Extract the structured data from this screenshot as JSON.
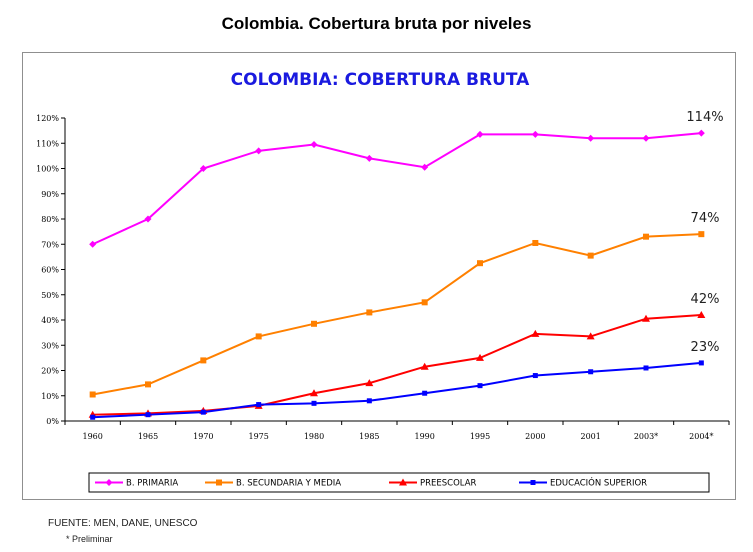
{
  "page": {
    "title": "Colombia.  Cobertura bruta por niveles",
    "source": "FUENTE: MEN, DANE, UNESCO",
    "footnote": "* Preliminar"
  },
  "chart_data": {
    "type": "line",
    "title": "COLOMBIA: COBERTURA BRUTA",
    "categories": [
      "1960",
      "1965",
      "1970",
      "1975",
      "1980",
      "1985",
      "1990",
      "1995",
      "2000",
      "2001",
      "2003*",
      "2004*"
    ],
    "ylim": [
      0,
      120
    ],
    "yticks": [
      "0%",
      "10%",
      "20%",
      "30%",
      "40%",
      "50%",
      "60%",
      "70%",
      "80%",
      "90%",
      "100%",
      "110%",
      "120%"
    ],
    "grid": false,
    "legend_position": "bottom",
    "series": [
      {
        "name": "B. PRIMARIA",
        "color": "#ff00ff",
        "marker": "diamond",
        "values": [
          70,
          80,
          100,
          107,
          109.5,
          104,
          100.5,
          113.5,
          113.5,
          112,
          112,
          114
        ]
      },
      {
        "name": "B. SECUNDARIA Y MEDIA",
        "color": "#ff8000",
        "marker": "square",
        "values": [
          10.5,
          14.5,
          24,
          33.5,
          38.5,
          43,
          47,
          62.5,
          70.5,
          65.5,
          73,
          74
        ]
      },
      {
        "name": "PREESCOLAR",
        "color": "#ff0000",
        "marker": "triangle",
        "values": [
          2.5,
          3,
          4,
          6,
          11,
          15,
          21.5,
          25,
          34.5,
          33.5,
          40.5,
          42
        ]
      },
      {
        "name": "EDUCACIÓN SUPERIOR",
        "color": "#0000ff",
        "marker": "cross",
        "values": [
          1.5,
          2.5,
          3.5,
          6.5,
          7,
          8,
          11,
          14,
          18,
          19.5,
          21,
          23
        ]
      }
    ],
    "end_labels": [
      "114%",
      "74%",
      "42%",
      "23%"
    ]
  }
}
